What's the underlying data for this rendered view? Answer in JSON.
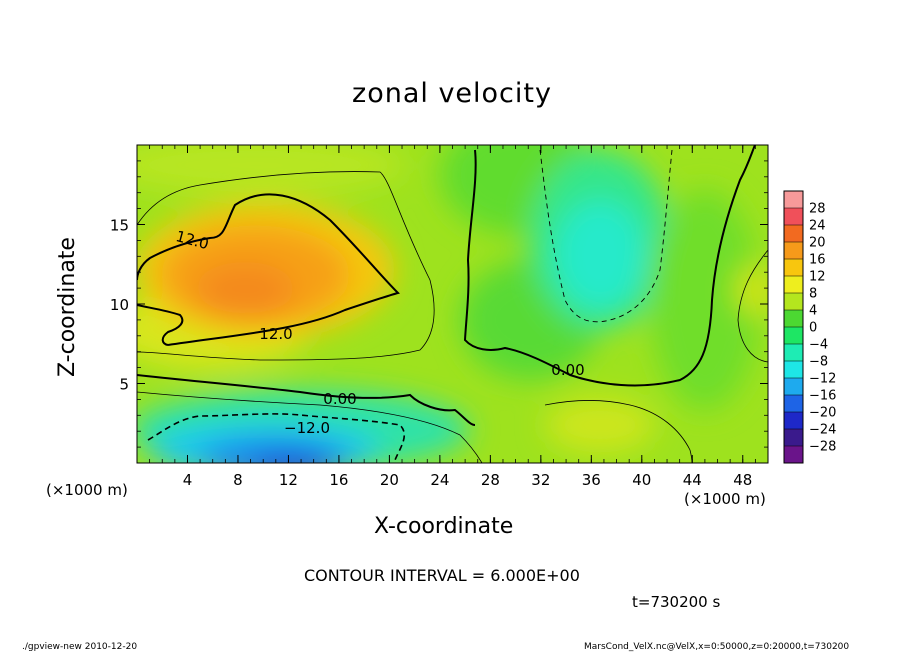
{
  "chart_data": {
    "type": "heatmap",
    "title": "zonal velocity",
    "xlabel": "X-coordinate",
    "ylabel": "Z-coordinate",
    "x_unit_label": "(×1000 m)",
    "xlim": [
      0,
      50
    ],
    "ylim": [
      0,
      20
    ],
    "x_ticks": [
      "4",
      "8",
      "12",
      "16",
      "20",
      "24",
      "28",
      "32",
      "36",
      "40",
      "44",
      "48"
    ],
    "y_ticks": [
      "5",
      "10",
      "15"
    ],
    "colorbar": {
      "levels": [
        "28",
        "24",
        "20",
        "16",
        "12",
        "8",
        "4",
        "0",
        "−4",
        "−8",
        "−12",
        "−16",
        "−20",
        "−24",
        "−28"
      ],
      "colors": [
        "#f79a9a",
        "#f0505a",
        "#f26a20",
        "#f69a1a",
        "#f8c60e",
        "#eeee1e",
        "#b4e61e",
        "#4cd832",
        "#1ee664",
        "#1eecb4",
        "#1ee6e6",
        "#1eaaee",
        "#1e64e6",
        "#1e28c8",
        "#3a1a8c",
        "#6a148a"
      ]
    },
    "contour_labels": [
      "12.0",
      "12.0",
      "0.00",
      "0.00",
      "−12.0"
    ],
    "contour_interval_text": "CONTOUR INTERVAL = 6.000E+00",
    "time_text": "t=730200 s"
  },
  "footer": {
    "left": "./gpview-new  2010-12-20",
    "right": "MarsCond_VelX.nc@VelX,x=0:50000,z=0:20000,t=730200"
  }
}
